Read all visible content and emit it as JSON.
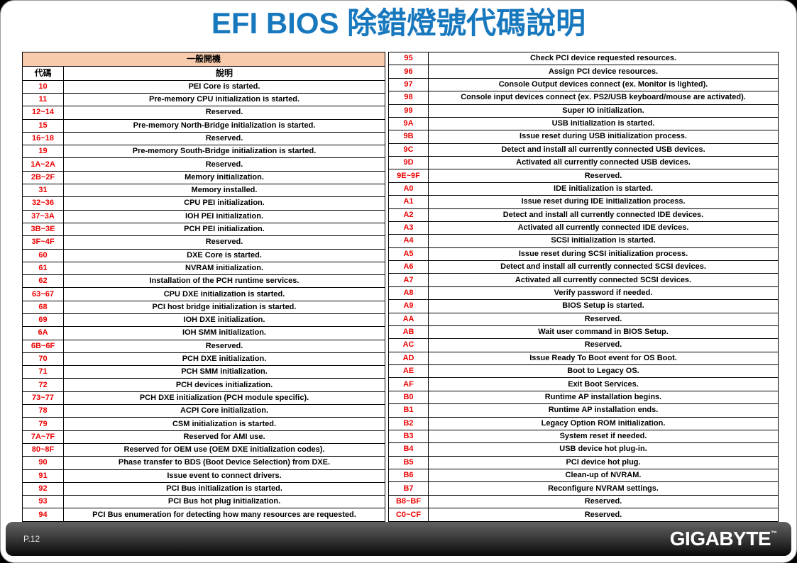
{
  "page": {
    "title": "EFI BIOS 除錯燈號代碼說明",
    "footer": {
      "page_number": "P.12",
      "brand": "GIGABYTE",
      "brand_tm": "™"
    }
  },
  "colors": {
    "title_blue": "#1878BE",
    "header_peach": "#F8CBAD",
    "code_red": "#EE0000",
    "footer_dark": "#1c1c1c"
  },
  "table": {
    "group_header": "一般開機",
    "columns": {
      "code": "代碼",
      "description": "說明"
    },
    "left_rows": [
      [
        "10",
        "PEI Core is started."
      ],
      [
        "11",
        "Pre-memory CPU initialization is started."
      ],
      [
        "12~14",
        "Reserved."
      ],
      [
        "15",
        "Pre-memory North-Bridge initialization is started."
      ],
      [
        "16~18",
        "Reserved."
      ],
      [
        "19",
        "Pre-memory South-Bridge initialization is started."
      ],
      [
        "1A~2A",
        "Reserved."
      ],
      [
        "2B~2F",
        "Memory initialization."
      ],
      [
        "31",
        "Memory installed."
      ],
      [
        "32~36",
        "CPU PEI initialization."
      ],
      [
        "37~3A",
        "IOH PEI initialization."
      ],
      [
        "3B~3E",
        "PCH PEI initialization."
      ],
      [
        "3F~4F",
        "Reserved."
      ],
      [
        "60",
        "DXE Core is started."
      ],
      [
        "61",
        "NVRAM initialization."
      ],
      [
        "62",
        "Installation of the PCH runtime services."
      ],
      [
        "63~67",
        "CPU DXE initialization is started."
      ],
      [
        "68",
        "PCI host bridge initialization is started."
      ],
      [
        "69",
        "IOH DXE initialization."
      ],
      [
        "6A",
        "IOH SMM initialization."
      ],
      [
        "6B~6F",
        "Reserved."
      ],
      [
        "70",
        "PCH DXE initialization."
      ],
      [
        "71",
        "PCH SMM initialization."
      ],
      [
        "72",
        "PCH devices initialization."
      ],
      [
        "73~77",
        "PCH DXE initialization (PCH module specific)."
      ],
      [
        "78",
        "ACPI Core initialization."
      ],
      [
        "79",
        "CSM initialization is started."
      ],
      [
        "7A~7F",
        "Reserved for AMI use."
      ],
      [
        "80~8F",
        "Reserved for OEM use (OEM DXE initialization codes)."
      ],
      [
        "90",
        "Phase transfer to BDS (Boot Device Selection) from DXE."
      ],
      [
        "91",
        "Issue event to connect drivers."
      ],
      [
        "92",
        "PCI Bus initialization is started."
      ],
      [
        "93",
        "PCI Bus hot plug initialization."
      ],
      [
        "94",
        "PCI Bus enumeration for detecting how many resources are requested."
      ]
    ],
    "right_rows": [
      [
        "95",
        "Check PCI device requested resources."
      ],
      [
        "96",
        "Assign PCI device resources."
      ],
      [
        "97",
        "Console Output devices connect (ex. Monitor is lighted)."
      ],
      [
        "98",
        "Console input devices connect (ex. PS2/USB keyboard/mouse are activated)."
      ],
      [
        "99",
        "Super IO initialization."
      ],
      [
        "9A",
        "USB initialization is started."
      ],
      [
        "9B",
        "Issue reset during USB initialization process."
      ],
      [
        "9C",
        "Detect and install all currently connected USB devices."
      ],
      [
        "9D",
        "Activated all currently connected USB devices."
      ],
      [
        "9E~9F",
        "Reserved."
      ],
      [
        "A0",
        "IDE initialization is started."
      ],
      [
        "A1",
        "Issue reset during IDE initialization process."
      ],
      [
        "A2",
        "Detect and install all currently connected IDE devices."
      ],
      [
        "A3",
        "Activated all currently connected IDE devices."
      ],
      [
        "A4",
        "SCSI initialization is started."
      ],
      [
        "A5",
        "Issue reset during SCSI initialization process."
      ],
      [
        "A6",
        "Detect and install all currently connected SCSI devices."
      ],
      [
        "A7",
        "Activated all currently connected SCSI devices."
      ],
      [
        "A8",
        "Verify password if needed."
      ],
      [
        "A9",
        "BIOS Setup is started."
      ],
      [
        "AA",
        "Reserved."
      ],
      [
        "AB",
        "Wait user command in BIOS Setup."
      ],
      [
        "AC",
        "Reserved."
      ],
      [
        "AD",
        "Issue Ready To Boot event for OS Boot."
      ],
      [
        "AE",
        "Boot to Legacy OS."
      ],
      [
        "AF",
        "Exit Boot Services."
      ],
      [
        "B0",
        "Runtime AP installation begins."
      ],
      [
        "B1",
        "Runtime AP installation ends."
      ],
      [
        "B2",
        "Legacy Option ROM initialization."
      ],
      [
        "B3",
        "System reset if needed."
      ],
      [
        "B4",
        "USB device hot plug-in."
      ],
      [
        "B5",
        "PCI device hot plug."
      ],
      [
        "B6",
        "Clean-up of NVRAM."
      ],
      [
        "B7",
        "Reconfigure NVRAM settings."
      ],
      [
        "B8~BF",
        "Reserved."
      ],
      [
        "C0~CF",
        "Reserved."
      ]
    ]
  }
}
